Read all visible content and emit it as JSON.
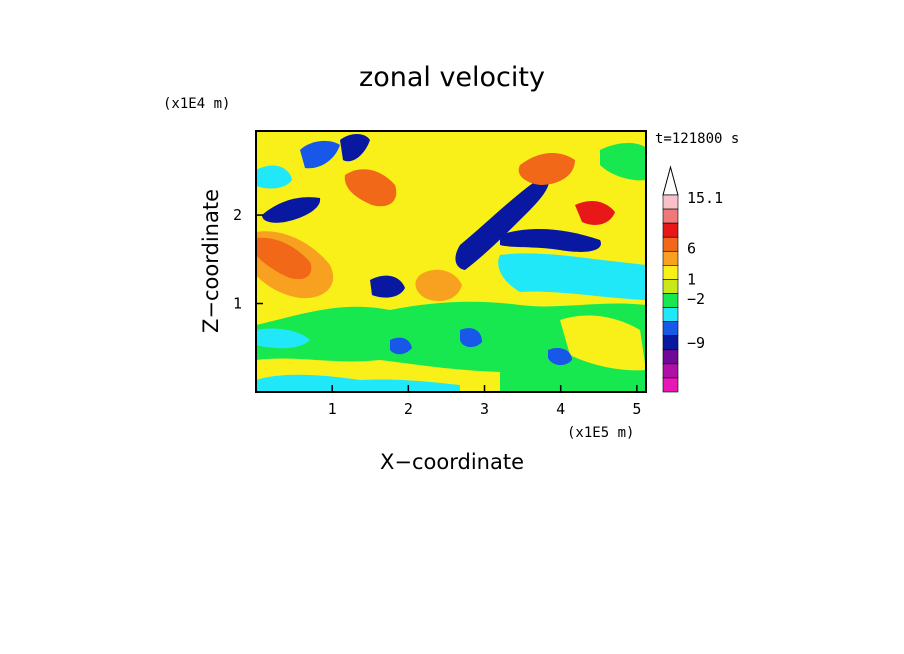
{
  "chart_data": {
    "type": "heatmap",
    "title": "zonal velocity",
    "xlabel": "X−coordinate",
    "ylabel": "Z−coordinate",
    "x_scale_label": "(x1E5 m)",
    "y_scale_label": "(x1E4 m)",
    "time_label": "t=121800 s",
    "xlim": [
      0,
      5.12
    ],
    "ylim": [
      0,
      2.95
    ],
    "x_ticks": [
      1,
      2,
      3,
      4,
      5
    ],
    "y_ticks": [
      1,
      2
    ],
    "colorbar": {
      "labels": [
        "15.1",
        "6",
        "1",
        "−2",
        "−9"
      ],
      "colors": [
        "#f8c0c8",
        "#f07878",
        "#e81818",
        "#f06818",
        "#f8a020",
        "#f8f018",
        "#c8e818",
        "#18e850",
        "#20e8f8",
        "#1858e8",
        "#0818a0",
        "#700898",
        "#b010a8",
        "#e818b8"
      ]
    },
    "palette": {
      "very_negative": "#0818a0",
      "negative": "#1858e8",
      "slightly_negative": "#20e8f8",
      "near_zero": "#18e850",
      "slightly_positive": "#f8f018",
      "positive": "#f8a020",
      "strong_positive": "#f06818",
      "very_positive": "#e81818"
    }
  }
}
